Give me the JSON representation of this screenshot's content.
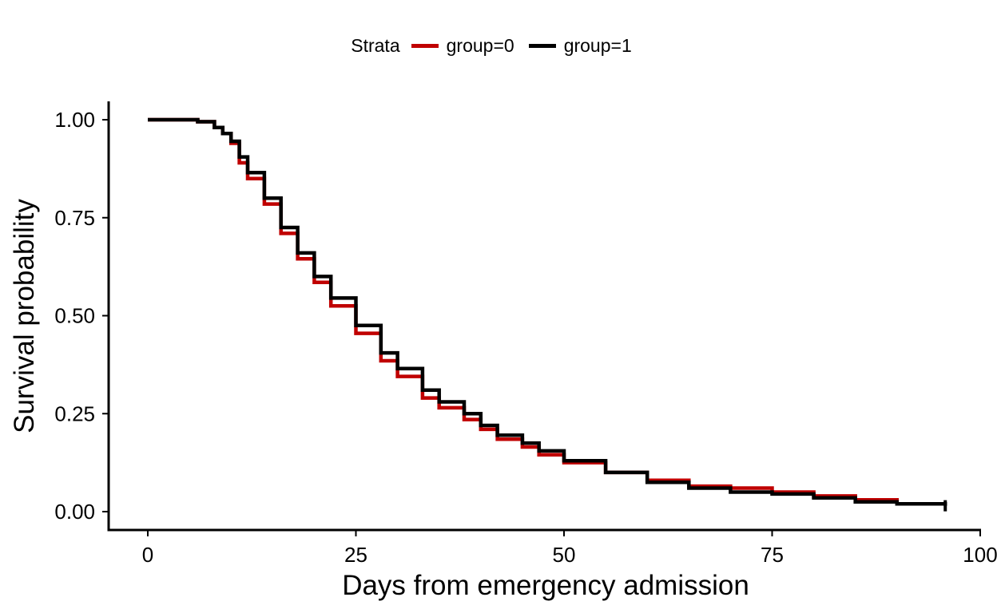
{
  "chart_data": {
    "type": "line",
    "subtype": "kaplan-meier step",
    "title": "",
    "xlabel": "Days from emergency admission",
    "ylabel": "Survival probability",
    "xlim": [
      0,
      100
    ],
    "ylim": [
      0,
      1
    ],
    "x_ticks": [
      "0",
      "25",
      "50",
      "75",
      "100"
    ],
    "y_ticks": [
      "0.00",
      "0.25",
      "0.50",
      "0.75",
      "1.00"
    ],
    "grid": false,
    "legend": {
      "title": "Strata",
      "position": "top",
      "entries": [
        "group=0",
        "group=1"
      ]
    },
    "series": [
      {
        "name": "group=0",
        "color": "#C00000",
        "x": [
          0,
          4,
          6,
          8,
          9,
          10,
          11,
          12,
          14,
          16,
          18,
          20,
          22,
          25,
          28,
          30,
          33,
          35,
          38,
          40,
          42,
          45,
          47,
          50,
          55,
          60,
          65,
          70,
          75,
          80,
          85,
          90
        ],
        "y": [
          1.0,
          1.0,
          0.995,
          0.98,
          0.965,
          0.94,
          0.89,
          0.85,
          0.785,
          0.71,
          0.645,
          0.585,
          0.525,
          0.455,
          0.385,
          0.345,
          0.29,
          0.265,
          0.235,
          0.21,
          0.185,
          0.165,
          0.145,
          0.125,
          0.1,
          0.08,
          0.065,
          0.06,
          0.05,
          0.04,
          0.03,
          0.025
        ]
      },
      {
        "name": "group=1",
        "color": "#000000",
        "x": [
          0,
          4,
          6,
          8,
          9,
          10,
          11,
          12,
          14,
          16,
          18,
          20,
          22,
          25,
          28,
          30,
          33,
          35,
          38,
          40,
          42,
          45,
          47,
          50,
          55,
          60,
          65,
          70,
          75,
          80,
          85,
          90,
          95.8
        ],
        "y": [
          1.0,
          1.0,
          0.995,
          0.98,
          0.965,
          0.945,
          0.905,
          0.865,
          0.8,
          0.725,
          0.66,
          0.6,
          0.545,
          0.475,
          0.405,
          0.365,
          0.31,
          0.28,
          0.25,
          0.22,
          0.195,
          0.175,
          0.155,
          0.13,
          0.1,
          0.075,
          0.06,
          0.05,
          0.045,
          0.035,
          0.025,
          0.02,
          0.015
        ]
      }
    ]
  }
}
